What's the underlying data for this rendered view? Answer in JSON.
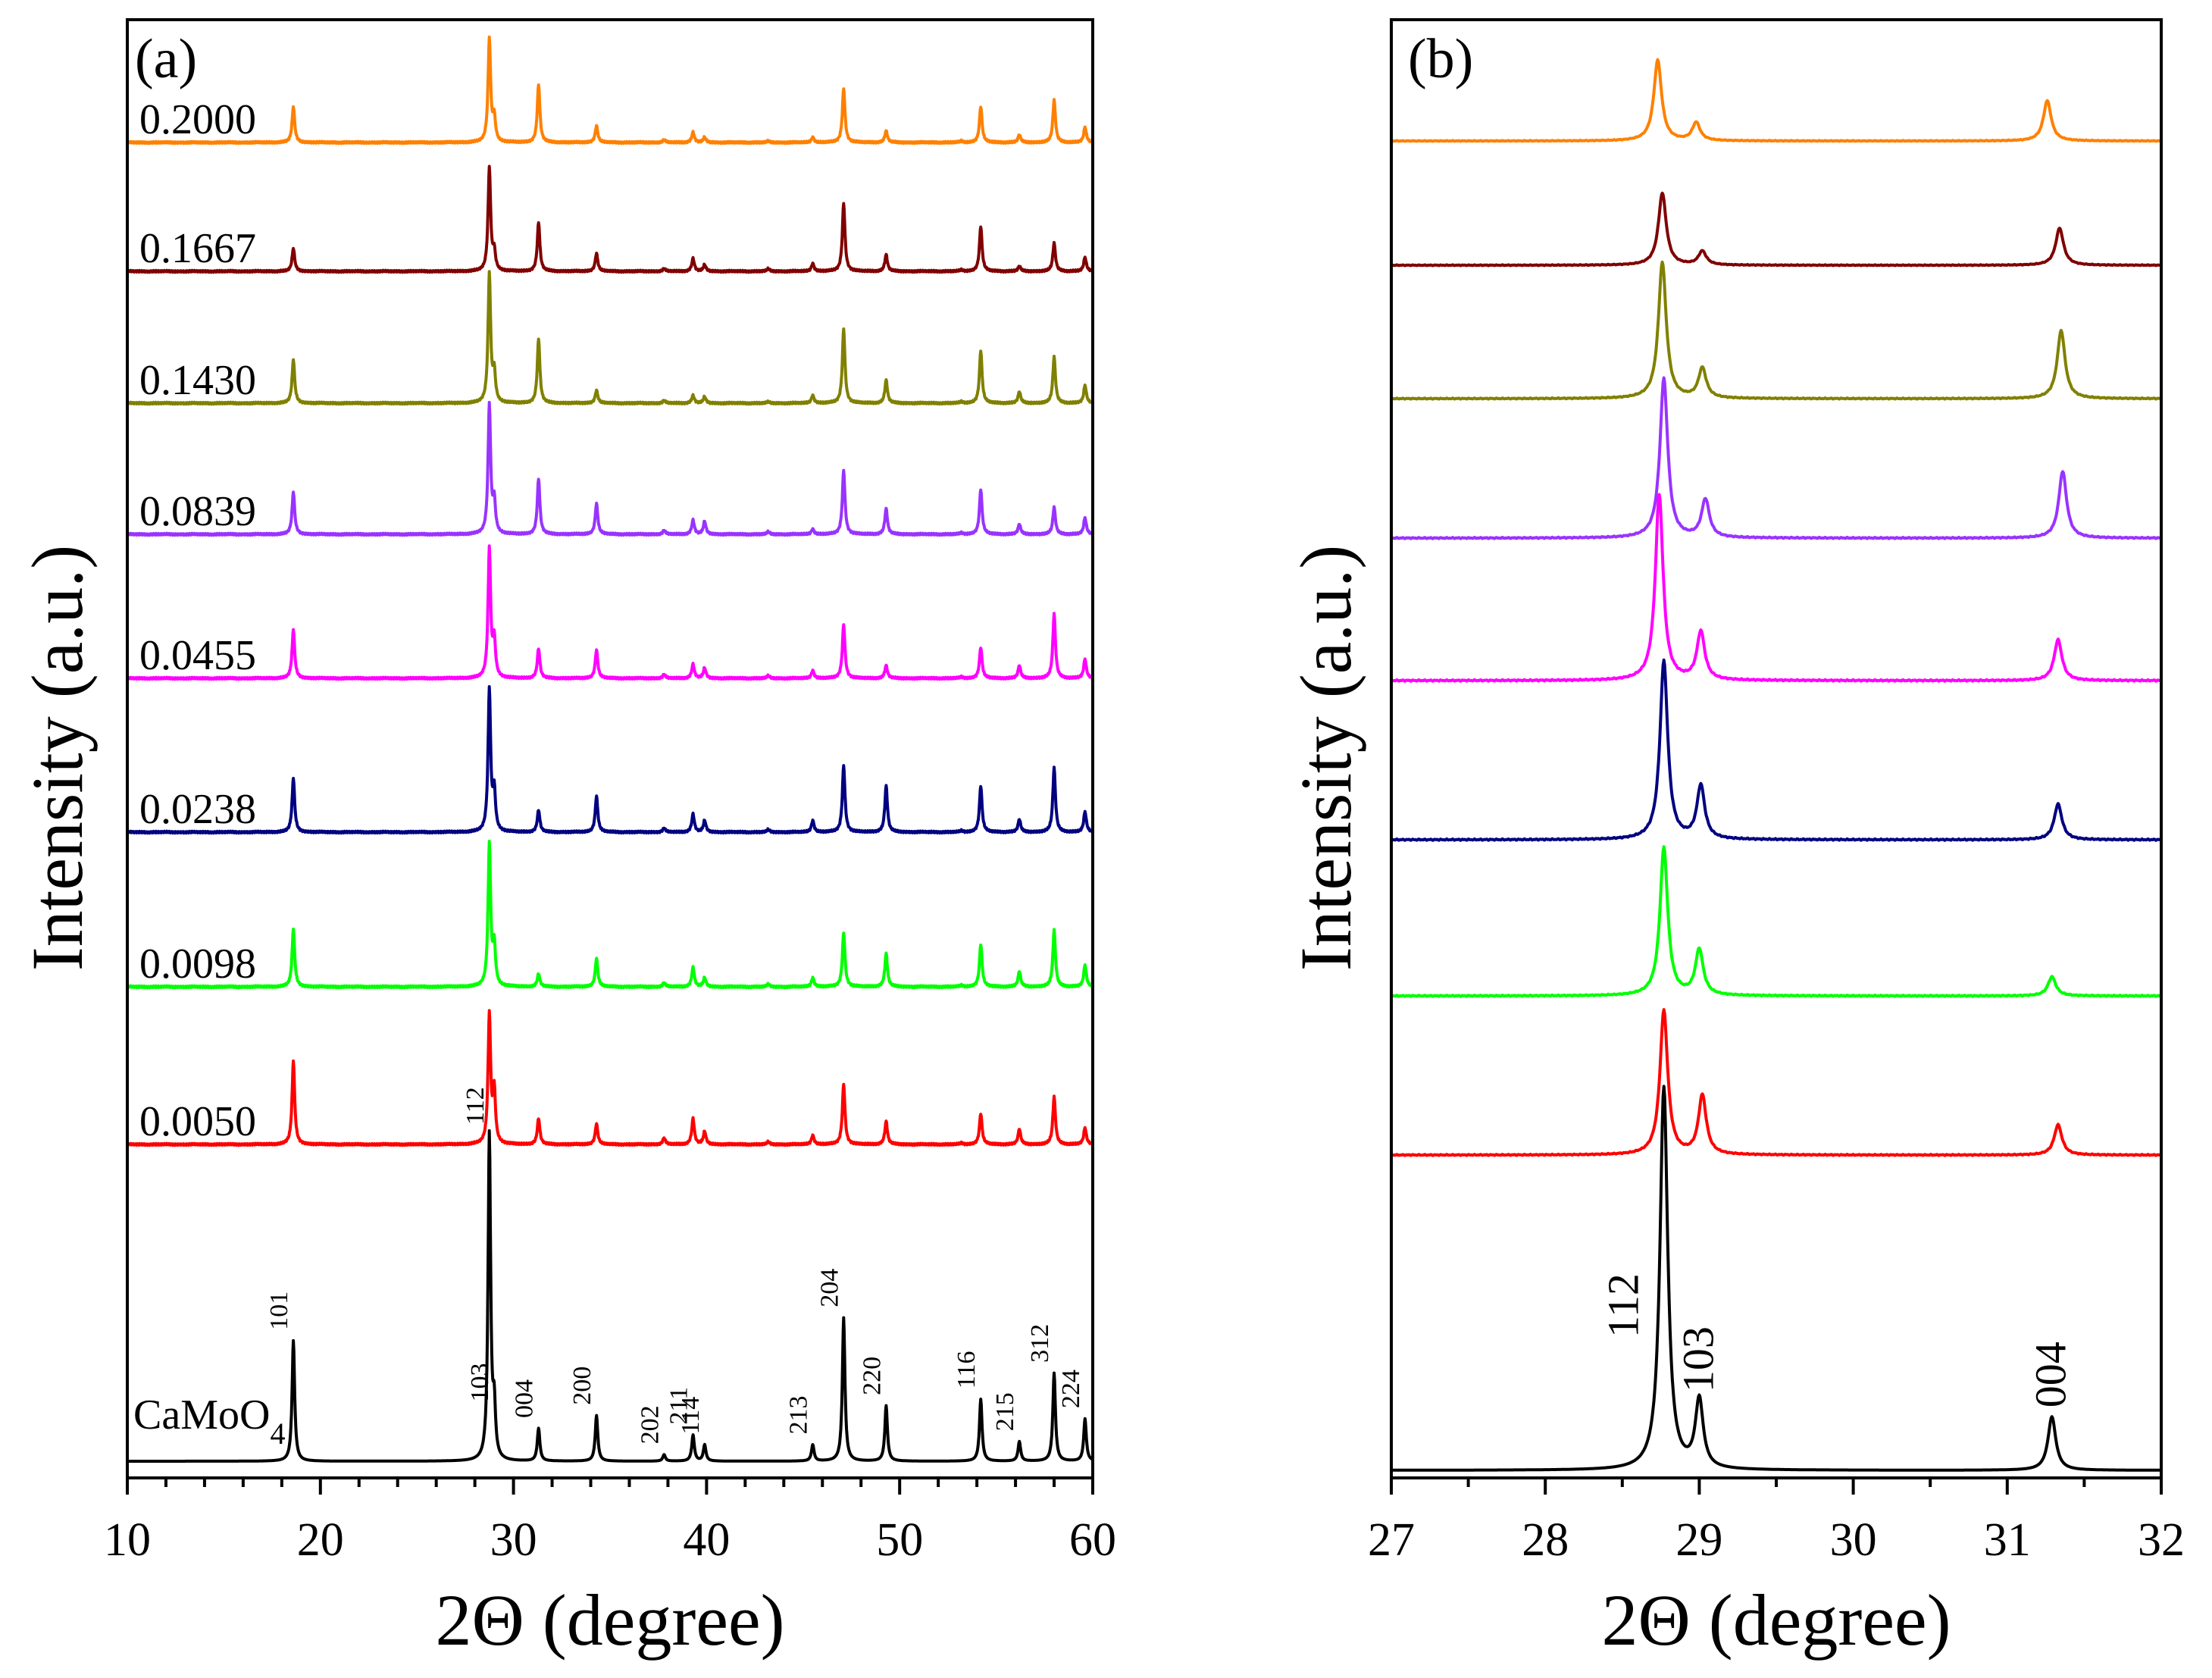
{
  "figure": {
    "panel_a_label": "(a)",
    "panel_b_label": "(b)",
    "ylabel": "Intensity (a.u.)",
    "xlabel": "2Θ (degree)"
  },
  "chart_data": [
    {
      "panel": "(a)",
      "type": "line",
      "xlabel": "2Θ (degree)",
      "ylabel": "Intensity (a.u.)",
      "xlim": [
        10,
        60
      ],
      "xticks": [
        10,
        20,
        30,
        40,
        50,
        60
      ],
      "y_ticks_shown": false,
      "grid": false,
      "reference_label": "CaMoO",
      "reference_subscript": "4",
      "peak_positions": [
        18.6,
        28.75,
        29.0,
        31.3,
        34.3,
        37.8,
        39.3,
        39.9,
        43.2,
        45.5,
        47.1,
        49.3,
        53.2,
        54.2,
        56.2,
        58.0,
        59.6
      ],
      "reference_peaks": [
        {
          "hkl": "101",
          "x": 18.6,
          "h": 0.37
        },
        {
          "hkl": "112",
          "x": 28.75,
          "h": 1.0
        },
        {
          "hkl": "103",
          "x": 29.0,
          "h": 0.15
        },
        {
          "hkl": "004",
          "x": 31.3,
          "h": 0.1
        },
        {
          "hkl": "200",
          "x": 34.3,
          "h": 0.14
        },
        {
          "hkl": "202",
          "x": 37.8,
          "h": 0.02
        },
        {
          "hkl": "211",
          "x": 39.3,
          "h": 0.08
        },
        {
          "hkl": "114",
          "x": 39.9,
          "h": 0.05
        },
        {
          "hkl": "213",
          "x": 45.5,
          "h": 0.05
        },
        {
          "hkl": "204",
          "x": 47.1,
          "h": 0.44
        },
        {
          "hkl": "220",
          "x": 49.3,
          "h": 0.17
        },
        {
          "hkl": "116",
          "x": 54.2,
          "h": 0.19
        },
        {
          "hkl": "215",
          "x": 56.2,
          "h": 0.06
        },
        {
          "hkl": "312",
          "x": 58.0,
          "h": 0.27
        },
        {
          "hkl": "224",
          "x": 59.6,
          "h": 0.13
        }
      ],
      "series": [
        {
          "name": "0.2000",
          "color": "#ff8000",
          "heights": [
            0.28,
            0.8,
            0.18,
            0.45,
            0.13,
            0.02,
            0.08,
            0.04,
            0.01,
            0.04,
            0.42,
            0.09,
            0.01,
            0.28,
            0.06,
            0.33,
            0.12
          ]
        },
        {
          "name": "0.1667",
          "color": "#800000",
          "heights": [
            0.18,
            0.8,
            0.14,
            0.38,
            0.14,
            0.02,
            0.1,
            0.05,
            0.02,
            0.06,
            0.53,
            0.13,
            0.01,
            0.35,
            0.04,
            0.22,
            0.11
          ]
        },
        {
          "name": "0.1430",
          "color": "#808000",
          "heights": [
            0.34,
            1.0,
            0.22,
            0.5,
            0.1,
            0.02,
            0.06,
            0.05,
            0.01,
            0.06,
            0.58,
            0.18,
            0.01,
            0.41,
            0.09,
            0.36,
            0.14
          ]
        },
        {
          "name": "0.0839",
          "color": "#9933ff",
          "heights": [
            0.33,
            1.0,
            0.24,
            0.43,
            0.24,
            0.03,
            0.11,
            0.1,
            0.02,
            0.04,
            0.5,
            0.2,
            0.01,
            0.35,
            0.08,
            0.21,
            0.13
          ]
        },
        {
          "name": "0.0455",
          "color": "#ff00ff",
          "heights": [
            0.38,
            1.0,
            0.28,
            0.23,
            0.22,
            0.03,
            0.11,
            0.08,
            0.02,
            0.06,
            0.42,
            0.1,
            0.01,
            0.24,
            0.1,
            0.5,
            0.15
          ]
        },
        {
          "name": "0.0238",
          "color": "#000080",
          "heights": [
            0.42,
            1.1,
            0.3,
            0.17,
            0.28,
            0.03,
            0.14,
            0.09,
            0.02,
            0.09,
            0.52,
            0.36,
            0.01,
            0.36,
            0.1,
            0.5,
            0.16
          ]
        },
        {
          "name": "0.0098",
          "color": "#00ff00",
          "heights": [
            0.45,
            1.1,
            0.3,
            0.1,
            0.22,
            0.03,
            0.15,
            0.07,
            0.02,
            0.07,
            0.42,
            0.26,
            0.01,
            0.33,
            0.12,
            0.44,
            0.17
          ]
        },
        {
          "name": "0.0050",
          "color": "#ff0000",
          "heights": [
            0.65,
            1.0,
            0.4,
            0.2,
            0.16,
            0.05,
            0.2,
            0.1,
            0.02,
            0.07,
            0.47,
            0.18,
            0.01,
            0.24,
            0.12,
            0.37,
            0.13
          ]
        }
      ]
    },
    {
      "panel": "(b)",
      "type": "line",
      "xlabel": "2Θ (degree)",
      "ylabel": "Intensity (a.u.)",
      "xlim": [
        27,
        32
      ],
      "xticks": [
        27,
        28,
        29,
        30,
        31,
        32
      ],
      "y_ticks_shown": false,
      "grid": false,
      "peak_positions": [
        28.75,
        29.0,
        31.3
      ],
      "reference_peaks": [
        {
          "hkl": "112",
          "x": 28.77,
          "h": 1.0
        },
        {
          "hkl": "103",
          "x": 29.0,
          "h": 0.18
        },
        {
          "hkl": "004",
          "x": 31.29,
          "h": 0.14
        }
      ],
      "series": [
        {
          "name": "0.2000",
          "color": "#ff8000",
          "peaks": [
            {
              "x": 28.73,
              "h": 0.76
            },
            {
              "x": 28.98,
              "h": 0.17
            },
            {
              "x": 31.26,
              "h": 0.38
            }
          ]
        },
        {
          "name": "0.1667",
          "color": "#800000",
          "peaks": [
            {
              "x": 28.76,
              "h": 0.68
            },
            {
              "x": 29.02,
              "h": 0.13
            },
            {
              "x": 31.34,
              "h": 0.35
            }
          ]
        },
        {
          "name": "0.1430",
          "color": "#808000",
          "peaks": [
            {
              "x": 28.76,
              "h": 1.0
            },
            {
              "x": 29.02,
              "h": 0.22
            },
            {
              "x": 31.35,
              "h": 0.5
            }
          ]
        },
        {
          "name": "0.0839",
          "color": "#9933ff",
          "peaks": [
            {
              "x": 28.77,
              "h": 1.0
            },
            {
              "x": 29.04,
              "h": 0.24
            },
            {
              "x": 31.36,
              "h": 0.42
            }
          ]
        },
        {
          "name": "0.0455",
          "color": "#ff00ff",
          "peaks": [
            {
              "x": 28.74,
              "h": 1.0
            },
            {
              "x": 29.01,
              "h": 0.26
            },
            {
              "x": 31.33,
              "h": 0.22
            }
          ]
        },
        {
          "name": "0.0238",
          "color": "#000080",
          "peaks": [
            {
              "x": 28.77,
              "h": 1.0
            },
            {
              "x": 29.01,
              "h": 0.3
            },
            {
              "x": 31.33,
              "h": 0.2
            }
          ]
        },
        {
          "name": "0.0098",
          "color": "#00ff00",
          "peaks": [
            {
              "x": 28.77,
              "h": 1.0
            },
            {
              "x": 29.0,
              "h": 0.31
            },
            {
              "x": 31.29,
              "h": 0.13
            }
          ]
        },
        {
          "name": "0.0050",
          "color": "#ff0000",
          "peaks": [
            {
              "x": 28.77,
              "h": 1.0
            },
            {
              "x": 29.02,
              "h": 0.41
            },
            {
              "x": 31.33,
              "h": 0.21
            }
          ]
        },
        {
          "name": "CaMoO4",
          "color": "#000000",
          "peaks": [
            {
              "x": 28.77,
              "h": 1.0
            },
            {
              "x": 29.0,
              "h": 0.18
            },
            {
              "x": 31.29,
              "h": 0.14
            }
          ]
        }
      ]
    }
  ]
}
